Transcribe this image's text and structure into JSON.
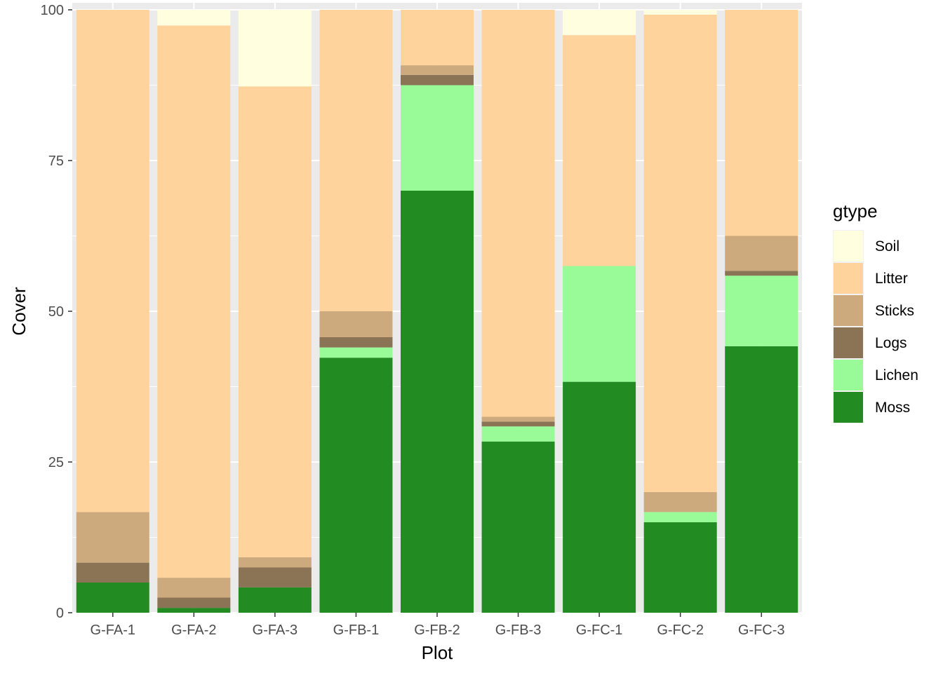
{
  "chart_data": {
    "type": "bar",
    "stacked": true,
    "xlabel": "Plot",
    "ylabel": "Cover",
    "ylim": [
      0,
      100
    ],
    "yticks": [
      0,
      25,
      50,
      75,
      100
    ],
    "categories": [
      "G-FA-1",
      "G-FA-2",
      "G-FA-3",
      "G-FB-1",
      "G-FB-2",
      "G-FB-3",
      "G-FC-1",
      "G-FC-2",
      "G-FC-3"
    ],
    "legend": {
      "title": "gtype",
      "position": "right"
    },
    "series": [
      {
        "name": "Moss",
        "color": "#228B22",
        "values": [
          5.0,
          0.8,
          4.2,
          42.3,
          70.0,
          28.4,
          38.3,
          15.0,
          44.2
        ]
      },
      {
        "name": "Lichen",
        "color": "#98FB98",
        "values": [
          0,
          0,
          0,
          1.7,
          17.5,
          2.5,
          19.2,
          1.7,
          11.7
        ]
      },
      {
        "name": "Logs",
        "color": "#8B7355",
        "values": [
          3.3,
          1.7,
          3.3,
          1.7,
          1.7,
          0.8,
          0,
          0,
          0.8
        ]
      },
      {
        "name": "Sticks",
        "color": "#CDAA7D",
        "values": [
          8.4,
          3.3,
          1.7,
          4.3,
          1.6,
          0.8,
          0,
          3.3,
          5.8
        ]
      },
      {
        "name": "Litter",
        "color": "#FFD39B",
        "values": [
          83.3,
          91.6,
          78.1,
          50.0,
          9.2,
          67.5,
          38.3,
          79.2,
          37.5
        ]
      },
      {
        "name": "Soil",
        "color": "#FFFFE0",
        "values": [
          0,
          2.6,
          12.7,
          0,
          0,
          0,
          4.2,
          0.8,
          0
        ]
      }
    ],
    "legend_order": [
      "Soil",
      "Litter",
      "Sticks",
      "Logs",
      "Lichen",
      "Moss"
    ]
  }
}
